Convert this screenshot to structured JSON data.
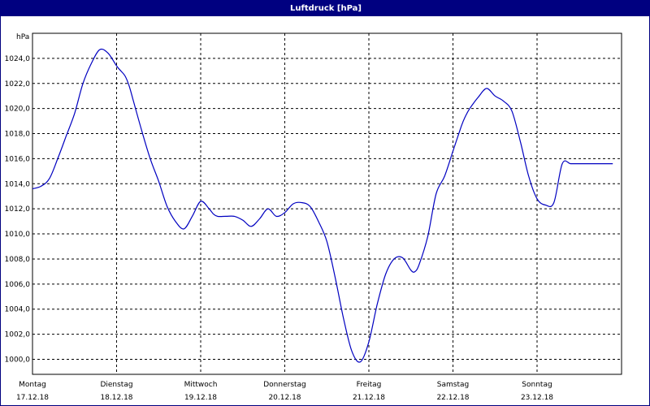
{
  "window": {
    "title": "Luftdruck [hPa]"
  },
  "colors": {
    "line": "#0000c0",
    "titlebar": "#000080",
    "grid": "#000000"
  },
  "chart_data": {
    "type": "line",
    "title": "Luftdruck [hPa]",
    "ylabel": "hPa",
    "xlabel": "",
    "ylim": [
      998.8,
      1026.0
    ],
    "xlim": [
      0,
      7
    ],
    "grid": true,
    "yticks": [
      "1000,0",
      "1002,0",
      "1004,0",
      "1006,0",
      "1008,0",
      "1010,0",
      "1012,0",
      "1014,0",
      "1016,0",
      "1018,0",
      "1020,0",
      "1022,0",
      "1024,0"
    ],
    "xticks": [
      {
        "day": "Montag",
        "date": "17.12.18"
      },
      {
        "day": "Dienstag",
        "date": "18.12.18"
      },
      {
        "day": "Mittwoch",
        "date": "19.12.18"
      },
      {
        "day": "Donnerstag",
        "date": "20.12.18"
      },
      {
        "day": "Freitag",
        "date": "21.12.18"
      },
      {
        "day": "Samstag",
        "date": "22.12.18"
      },
      {
        "day": "Sonntag",
        "date": "23.12.18"
      }
    ],
    "series": [
      {
        "x": [
          0,
          0.1,
          0.2,
          0.3,
          0.4,
          0.5,
          0.6,
          0.7,
          0.8,
          0.9,
          1.0,
          1.05,
          1.1,
          1.15,
          1.2,
          1.3,
          1.4,
          1.5,
          1.6,
          1.7,
          1.8,
          1.9,
          2.0,
          2.1,
          2.15,
          2.2,
          2.3,
          2.4,
          2.5,
          2.6,
          2.7,
          2.8,
          2.9,
          3.0,
          3.1,
          3.2,
          3.3,
          3.4,
          3.5,
          3.6,
          3.7,
          3.8,
          3.9,
          4.0,
          4.1,
          4.2,
          4.3,
          4.4,
          4.5,
          4.55,
          4.6,
          4.7,
          4.8,
          4.9,
          5.0,
          5.1,
          5.15,
          5.2,
          5.3,
          5.4,
          5.5,
          5.6,
          5.7,
          5.8,
          5.9,
          6.0,
          6.1,
          6.2,
          6.3,
          6.4,
          6.5,
          6.6,
          6.7,
          6.8,
          6.9,
          7.0
        ],
        "values": [
          1013.6,
          1013.8,
          1014.4,
          1016.0,
          1017.8,
          1019.6,
          1022.0,
          1023.6,
          1024.7,
          1024.4,
          1023.4,
          1023.0,
          1022.6,
          1021.8,
          1020.6,
          1018.2,
          1016.0,
          1014.2,
          1012.2,
          1011.0,
          1010.4,
          1011.4,
          1012.6,
          1012.0,
          1011.6,
          1011.4,
          1011.4,
          1011.4,
          1011.1,
          1010.6,
          1011.2,
          1012.0,
          1011.4,
          1011.7,
          1012.4,
          1012.5,
          1012.2,
          1011.0,
          1009.4,
          1006.5,
          1003.2,
          1000.6,
          999.8,
          1001.4,
          1004.4,
          1006.8,
          1008.0,
          1008.1,
          1007.1,
          1007.0,
          1007.6,
          1009.8,
          1013.2,
          1014.6,
          1016.6,
          1018.6,
          1019.4,
          1020.0,
          1020.9,
          1021.6,
          1021.0,
          1020.6,
          1019.8,
          1017.4,
          1014.6,
          1012.8,
          1012.3,
          1012.5,
          1015.6,
          1015.6,
          1015.6,
          1015.6,
          1015.6,
          1015.6,
          1015.6,
          1015.6
        ]
      }
    ]
  }
}
